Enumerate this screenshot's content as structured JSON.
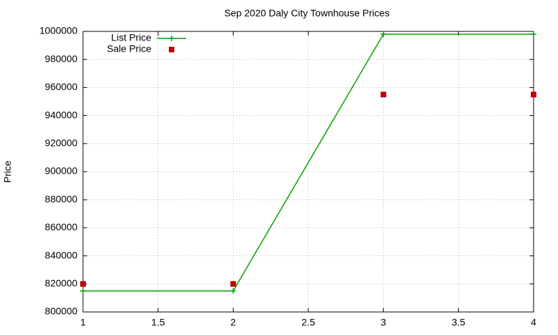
{
  "chart_data": {
    "type": "line",
    "title": "Sep 2020 Daly City Townhouse Prices",
    "y_label": "Price",
    "x": [
      1,
      2,
      3,
      4
    ],
    "series": [
      {
        "name": "List Price",
        "color": "#00a000",
        "style": "linespoints",
        "values": [
          815000,
          815000,
          998000,
          998000
        ]
      },
      {
        "name": "Sale Price",
        "color": "#c00000",
        "style": "points",
        "values": [
          820000,
          820000,
          955000,
          955000
        ]
      }
    ],
    "xlim": [
      1,
      4
    ],
    "xticks": [
      1,
      1.5,
      2,
      2.5,
      3,
      3.5,
      4
    ],
    "ylim": [
      800000,
      1000000
    ],
    "yticks": [
      800000,
      820000,
      840000,
      860000,
      880000,
      900000,
      920000,
      940000,
      960000,
      980000,
      1000000
    ],
    "grid": true,
    "legend": "top-left"
  }
}
